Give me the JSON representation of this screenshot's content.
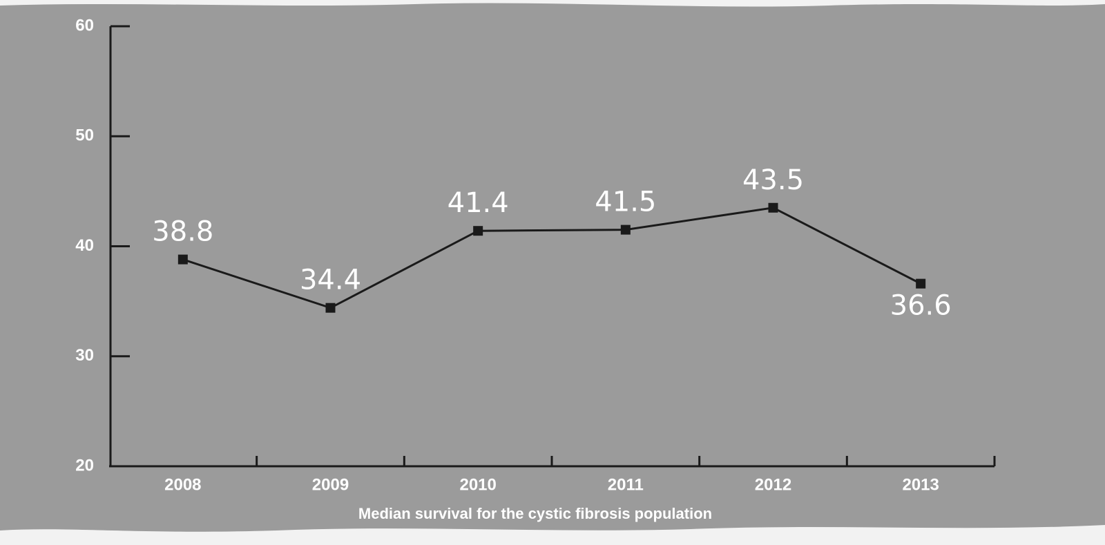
{
  "chart_data": {
    "type": "line",
    "x_label": "Median survival for the cystic fibrosis population",
    "categories": [
      "2008",
      "2009",
      "2010",
      "2011",
      "2012",
      "2013"
    ],
    "values": [
      38.8,
      34.4,
      41.4,
      41.5,
      43.5,
      36.6
    ],
    "color": "#1a1a1a",
    "ylim": [
      20,
      60
    ],
    "yticks": [
      20,
      30,
      40,
      50,
      60
    ],
    "grid": false
  }
}
